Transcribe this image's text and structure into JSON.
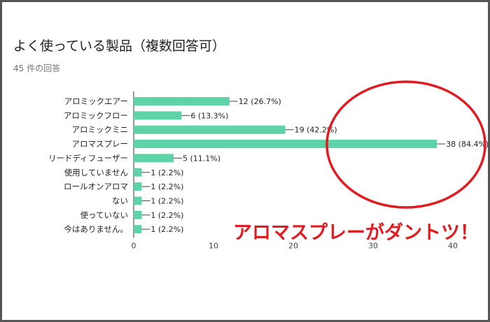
{
  "header": {
    "title": "よく使っている製品（複数回答可）",
    "response_count": "45 件の回答"
  },
  "annotation": {
    "text": "アロマスプレーがダントツ！",
    "color": "#e01b22"
  },
  "chart_data": {
    "type": "bar",
    "orientation": "horizontal",
    "title": "よく使っている製品（複数回答可）",
    "categories": [
      "アロミックエアー",
      "アロミックフロー",
      "アロミックミニ",
      "アロマスプレー",
      "リードディフューザー",
      "使用していません",
      "ロールオンアロマ",
      "ない",
      "使っていない",
      "今はありません。"
    ],
    "values": [
      12,
      6,
      19,
      38,
      5,
      1,
      1,
      1,
      1,
      1
    ],
    "value_labels": [
      "12 (26.7%)",
      "6 (13.3%)",
      "19 (42.2%)",
      "38 (84.4%)",
      "5 (11.1%)",
      "1 (2.2%)",
      "1 (2.2%)",
      "1 (2.2%)",
      "1 (2.2%)",
      "1 (2.2%)"
    ],
    "xticks": [
      "0",
      "10",
      "20",
      "30",
      "40"
    ],
    "xlim": [
      0,
      40
    ],
    "bar_color": "#5ed3a7",
    "grid": false,
    "highlight": "アロマスプレー"
  }
}
